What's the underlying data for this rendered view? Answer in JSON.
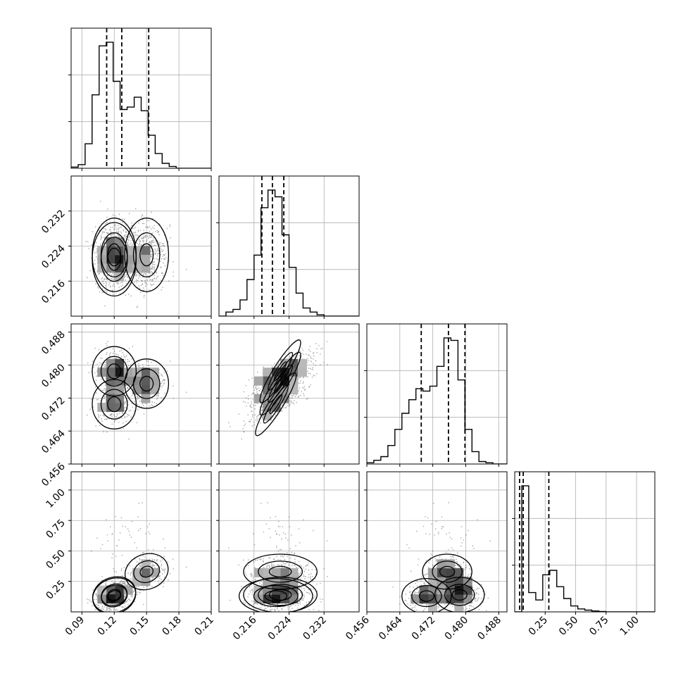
{
  "chart_data": {
    "type": "corner",
    "parameters": [
      {
        "range": [
          0.08,
          0.21
        ],
        "ticks": [
          0.09,
          0.12,
          0.15,
          0.18,
          0.21
        ],
        "tick_labels": [
          "0.09",
          "0.12",
          "0.15",
          "0.18",
          "0.21"
        ]
      },
      {
        "range": [
          0.208,
          0.24
        ],
        "ticks": [
          0.216,
          0.224,
          0.232
        ],
        "tick_labels": [
          "0.216",
          "0.224",
          "0.232"
        ]
      },
      {
        "range": [
          0.456,
          0.49
        ],
        "ticks": [
          0.456,
          0.464,
          0.472,
          0.48,
          0.488
        ],
        "tick_labels": [
          "0.456",
          "0.464",
          "0.472",
          "0.480",
          "0.488"
        ]
      },
      {
        "range": [
          0.0,
          1.15
        ],
        "ticks": [
          0.25,
          0.5,
          0.75,
          1.0
        ],
        "tick_labels": [
          "0.25",
          "0.50",
          "0.75",
          "1.00"
        ]
      }
    ],
    "histograms": [
      {
        "edges_start": 0.08,
        "bin_width": 0.0065,
        "counts": [
          0.01,
          0.03,
          0.2,
          0.6,
          1.0,
          1.03,
          0.71,
          0.48,
          0.5,
          0.58,
          0.47,
          0.27,
          0.12,
          0.04,
          0.015,
          0.0,
          0.0,
          0.0,
          0.0,
          0.0
        ],
        "quantiles": [
          0.113,
          0.127,
          0.152
        ]
      },
      {
        "edges_start": 0.208,
        "bin_width": 0.0016,
        "counts": [
          0.0,
          0.03,
          0.05,
          0.12,
          0.27,
          0.45,
          0.8,
          0.93,
          0.88,
          0.6,
          0.36,
          0.17,
          0.06,
          0.03,
          0.01,
          0.0,
          0.0,
          0.0,
          0.0,
          0.0
        ],
        "quantiles": [
          0.2178,
          0.2202,
          0.2228
        ]
      },
      {
        "edges_start": 0.456,
        "bin_width": 0.0017,
        "counts": [
          0.01,
          0.03,
          0.06,
          0.15,
          0.28,
          0.41,
          0.52,
          0.61,
          0.59,
          0.63,
          0.79,
          1.02,
          1.0,
          0.68,
          0.28,
          0.1,
          0.02,
          0.01,
          0.0,
          0.0
        ],
        "quantiles": [
          0.4692,
          0.4758,
          0.4798
        ]
      },
      {
        "edges_start": 0.0,
        "bin_width": 0.0575,
        "counts": [
          0.0,
          0.85,
          0.13,
          0.08,
          0.25,
          0.28,
          0.17,
          0.09,
          0.04,
          0.02,
          0.012,
          0.006,
          0.003,
          0.0,
          0.0,
          0.0,
          0.0,
          0.0,
          0.0,
          0.0
        ],
        "quantiles": [
          0.04,
          0.07,
          0.28
        ]
      }
    ],
    "modes": [
      {
        "mean": [
          0.12,
          0.222,
          0.4785,
          0.14
        ],
        "weight": 0.36
      },
      {
        "mean": [
          0.12,
          0.221,
          0.4705,
          0.13
        ],
        "weight": 0.28
      },
      {
        "mean": [
          0.15,
          0.222,
          0.4755,
          0.33
        ],
        "weight": 0.36
      }
    ],
    "contour_levels": [
      "0.5 sigma",
      "1 sigma",
      "1.5 sigma",
      "2 sigma"
    ],
    "quantile_line_style": "dashed",
    "grid": true
  }
}
